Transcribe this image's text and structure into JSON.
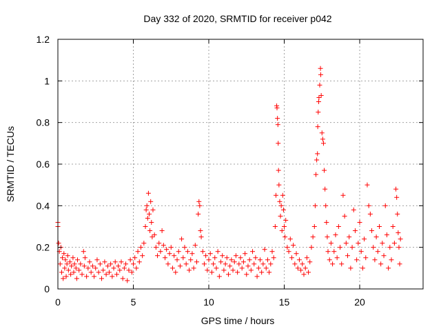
{
  "chart_data": {
    "type": "scatter",
    "title": "Day 332 of 2020, SRMTID for receiver p042",
    "xlabel": "GPS time / hours",
    "ylabel": "SRMTID / TECUs",
    "xlim": [
      0,
      24.2
    ],
    "ylim": [
      0,
      1.2
    ],
    "xticks": [
      0,
      5,
      10,
      15,
      20
    ],
    "xtick_labels": [
      "0",
      "5",
      "10",
      "15",
      "20"
    ],
    "yticks": [
      0,
      0.2,
      0.4,
      0.6,
      0.8,
      1,
      1.2
    ],
    "ytick_labels": [
      "0",
      "0.2",
      "0.4",
      "0.6",
      "0.8",
      "1",
      "1.2"
    ],
    "grid": true,
    "marker": "+",
    "series": [
      {
        "name": "SRMTID",
        "color": "#ff0000",
        "points": [
          [
            0.0,
            0.32
          ],
          [
            0.0,
            0.3
          ],
          [
            0.05,
            0.22
          ],
          [
            0.1,
            0.18
          ],
          [
            0.15,
            0.12
          ],
          [
            0.2,
            0.2
          ],
          [
            0.25,
            0.08
          ],
          [
            0.3,
            0.15
          ],
          [
            0.35,
            0.05
          ],
          [
            0.4,
            0.17
          ],
          [
            0.45,
            0.1
          ],
          [
            0.5,
            0.14
          ],
          [
            0.55,
            0.06
          ],
          [
            0.6,
            0.12
          ],
          [
            0.65,
            0.16
          ],
          [
            0.7,
            0.09
          ],
          [
            0.8,
            0.13
          ],
          [
            0.85,
            0.07
          ],
          [
            0.9,
            0.11
          ],
          [
            1.0,
            0.15
          ],
          [
            1.05,
            0.08
          ],
          [
            1.1,
            0.12
          ],
          [
            1.2,
            0.1
          ],
          [
            1.25,
            0.05
          ],
          [
            1.3,
            0.14
          ],
          [
            1.4,
            0.09
          ],
          [
            1.5,
            0.12
          ],
          [
            1.6,
            0.07
          ],
          [
            1.7,
            0.18
          ],
          [
            1.75,
            0.11
          ],
          [
            1.8,
            0.15
          ],
          [
            1.9,
            0.06
          ],
          [
            2.0,
            0.1
          ],
          [
            2.1,
            0.13
          ],
          [
            2.2,
            0.08
          ],
          [
            2.3,
            0.11
          ],
          [
            2.4,
            0.06
          ],
          [
            2.5,
            0.1
          ],
          [
            2.6,
            0.14
          ],
          [
            2.7,
            0.08
          ],
          [
            2.8,
            0.12
          ],
          [
            2.9,
            0.05
          ],
          [
            3.0,
            0.09
          ],
          [
            3.1,
            0.13
          ],
          [
            3.2,
            0.07
          ],
          [
            3.3,
            0.11
          ],
          [
            3.4,
            0.08
          ],
          [
            3.5,
            0.12
          ],
          [
            3.6,
            0.06
          ],
          [
            3.7,
            0.1
          ],
          [
            3.8,
            0.13
          ],
          [
            3.9,
            0.07
          ],
          [
            4.0,
            0.11
          ],
          [
            4.1,
            0.09
          ],
          [
            4.2,
            0.13
          ],
          [
            4.3,
            0.05
          ],
          [
            4.4,
            0.1
          ],
          [
            4.5,
            0.12
          ],
          [
            4.6,
            0.04
          ],
          [
            4.7,
            0.09
          ],
          [
            4.8,
            0.14
          ],
          [
            4.9,
            0.08
          ],
          [
            5.0,
            0.12
          ],
          [
            5.1,
            0.15
          ],
          [
            5.2,
            0.1
          ],
          [
            5.3,
            0.18
          ],
          [
            5.4,
            0.13
          ],
          [
            5.5,
            0.2
          ],
          [
            5.6,
            0.16
          ],
          [
            5.7,
            0.22
          ],
          [
            5.8,
            0.3
          ],
          [
            5.85,
            0.38
          ],
          [
            5.9,
            0.4
          ],
          [
            5.95,
            0.34
          ],
          [
            6.0,
            0.46
          ],
          [
            6.05,
            0.36
          ],
          [
            6.1,
            0.28
          ],
          [
            6.15,
            0.42
          ],
          [
            6.2,
            0.32
          ],
          [
            6.25,
            0.25
          ],
          [
            6.3,
            0.38
          ],
          [
            6.4,
            0.26
          ],
          [
            6.5,
            0.2
          ],
          [
            6.6,
            0.16
          ],
          [
            6.7,
            0.22
          ],
          [
            6.8,
            0.18
          ],
          [
            6.9,
            0.28
          ],
          [
            7.0,
            0.21
          ],
          [
            7.1,
            0.15
          ],
          [
            7.2,
            0.19
          ],
          [
            7.3,
            0.12
          ],
          [
            7.4,
            0.17
          ],
          [
            7.5,
            0.2
          ],
          [
            7.6,
            0.1
          ],
          [
            7.7,
            0.16
          ],
          [
            7.8,
            0.08
          ],
          [
            7.9,
            0.14
          ],
          [
            8.0,
            0.18
          ],
          [
            8.1,
            0.11
          ],
          [
            8.2,
            0.24
          ],
          [
            8.3,
            0.15
          ],
          [
            8.4,
            0.2
          ],
          [
            8.5,
            0.12
          ],
          [
            8.6,
            0.18
          ],
          [
            8.7,
            0.09
          ],
          [
            8.8,
            0.14
          ],
          [
            8.9,
            0.17
          ],
          [
            9.0,
            0.1
          ],
          [
            9.1,
            0.21
          ],
          [
            9.2,
            0.13
          ],
          [
            9.3,
            0.36
          ],
          [
            9.35,
            0.42
          ],
          [
            9.4,
            0.4
          ],
          [
            9.45,
            0.28
          ],
          [
            9.5,
            0.25
          ],
          [
            9.6,
            0.18
          ],
          [
            9.7,
            0.12
          ],
          [
            9.8,
            0.16
          ],
          [
            9.9,
            0.09
          ],
          [
            10.0,
            0.14
          ],
          [
            10.1,
            0.17
          ],
          [
            10.2,
            0.08
          ],
          [
            10.3,
            0.12
          ],
          [
            10.4,
            0.15
          ],
          [
            10.5,
            0.1
          ],
          [
            10.6,
            0.18
          ],
          [
            10.7,
            0.06
          ],
          [
            10.8,
            0.13
          ],
          [
            10.9,
            0.16
          ],
          [
            11.0,
            0.09
          ],
          [
            11.1,
            0.12
          ],
          [
            11.2,
            0.15
          ],
          [
            11.3,
            0.07
          ],
          [
            11.4,
            0.11
          ],
          [
            11.5,
            0.14
          ],
          [
            11.6,
            0.09
          ],
          [
            11.7,
            0.13
          ],
          [
            11.8,
            0.16
          ],
          [
            11.9,
            0.08
          ],
          [
            12.0,
            0.12
          ],
          [
            12.1,
            0.15
          ],
          [
            12.2,
            0.1
          ],
          [
            12.3,
            0.13
          ],
          [
            12.4,
            0.17
          ],
          [
            12.5,
            0.07
          ],
          [
            12.6,
            0.11
          ],
          [
            12.7,
            0.14
          ],
          [
            12.8,
            0.09
          ],
          [
            12.9,
            0.18
          ],
          [
            13.0,
            0.12
          ],
          [
            13.1,
            0.15
          ],
          [
            13.2,
            0.06
          ],
          [
            13.3,
            0.1
          ],
          [
            13.4,
            0.14
          ],
          [
            13.5,
            0.08
          ],
          [
            13.6,
            0.12
          ],
          [
            13.7,
            0.19
          ],
          [
            13.8,
            0.1
          ],
          [
            13.9,
            0.14
          ],
          [
            14.0,
            0.08
          ],
          [
            14.1,
            0.12
          ],
          [
            14.2,
            0.18
          ],
          [
            14.3,
            0.15
          ],
          [
            14.4,
            0.3
          ],
          [
            14.45,
            0.45
          ],
          [
            14.5,
            0.88
          ],
          [
            14.52,
            0.87
          ],
          [
            14.55,
            0.82
          ],
          [
            14.58,
            0.79
          ],
          [
            14.6,
            0.7
          ],
          [
            14.62,
            0.57
          ],
          [
            14.65,
            0.5
          ],
          [
            14.7,
            0.42
          ],
          [
            14.75,
            0.35
          ],
          [
            14.8,
            0.4
          ],
          [
            14.85,
            0.28
          ],
          [
            14.9,
            0.45
          ],
          [
            14.95,
            0.38
          ],
          [
            15.0,
            0.3
          ],
          [
            15.05,
            0.25
          ],
          [
            15.1,
            0.33
          ],
          [
            15.2,
            0.2
          ],
          [
            15.3,
            0.18
          ],
          [
            15.4,
            0.24
          ],
          [
            15.5,
            0.15
          ],
          [
            15.6,
            0.21
          ],
          [
            15.7,
            0.12
          ],
          [
            15.8,
            0.17
          ],
          [
            15.9,
            0.1
          ],
          [
            16.0,
            0.14
          ],
          [
            16.1,
            0.09
          ],
          [
            16.2,
            0.12
          ],
          [
            16.3,
            0.07
          ],
          [
            16.4,
            0.1
          ],
          [
            16.5,
            0.15
          ],
          [
            16.6,
            0.08
          ],
          [
            16.7,
            0.13
          ],
          [
            16.8,
            0.2
          ],
          [
            16.9,
            0.25
          ],
          [
            17.0,
            0.3
          ],
          [
            17.05,
            0.4
          ],
          [
            17.1,
            0.55
          ],
          [
            17.15,
            0.62
          ],
          [
            17.2,
            0.65
          ],
          [
            17.22,
            0.78
          ],
          [
            17.25,
            0.85
          ],
          [
            17.28,
            0.9
          ],
          [
            17.3,
            0.92
          ],
          [
            17.35,
            0.98
          ],
          [
            17.4,
            1.06
          ],
          [
            17.42,
            1.03
          ],
          [
            17.45,
            0.93
          ],
          [
            17.5,
            0.75
          ],
          [
            17.55,
            0.72
          ],
          [
            17.6,
            0.7
          ],
          [
            17.65,
            0.57
          ],
          [
            17.7,
            0.48
          ],
          [
            17.75,
            0.4
          ],
          [
            17.8,
            0.32
          ],
          [
            17.85,
            0.25
          ],
          [
            17.9,
            0.18
          ],
          [
            18.0,
            0.14
          ],
          [
            18.1,
            0.22
          ],
          [
            18.2,
            0.12
          ],
          [
            18.3,
            0.18
          ],
          [
            18.4,
            0.26
          ],
          [
            18.5,
            0.15
          ],
          [
            18.6,
            0.3
          ],
          [
            18.7,
            0.2
          ],
          [
            18.8,
            0.12
          ],
          [
            18.9,
            0.45
          ],
          [
            19.0,
            0.35
          ],
          [
            19.1,
            0.22
          ],
          [
            19.2,
            0.16
          ],
          [
            19.3,
            0.25
          ],
          [
            19.4,
            0.1
          ],
          [
            19.5,
            0.2
          ],
          [
            19.6,
            0.38
          ],
          [
            19.7,
            0.28
          ],
          [
            19.8,
            0.14
          ],
          [
            19.9,
            0.22
          ],
          [
            20.0,
            0.32
          ],
          [
            20.1,
            0.18
          ],
          [
            20.2,
            0.1
          ],
          [
            20.3,
            0.24
          ],
          [
            20.4,
            0.15
          ],
          [
            20.5,
            0.5
          ],
          [
            20.6,
            0.4
          ],
          [
            20.7,
            0.36
          ],
          [
            20.8,
            0.28
          ],
          [
            20.9,
            0.2
          ],
          [
            21.0,
            0.14
          ],
          [
            21.1,
            0.25
          ],
          [
            21.2,
            0.18
          ],
          [
            21.3,
            0.3
          ],
          [
            21.4,
            0.12
          ],
          [
            21.5,
            0.22
          ],
          [
            21.6,
            0.16
          ],
          [
            21.7,
            0.4
          ],
          [
            21.8,
            0.26
          ],
          [
            21.9,
            0.1
          ],
          [
            22.0,
            0.2
          ],
          [
            22.1,
            0.14
          ],
          [
            22.2,
            0.3
          ],
          [
            22.3,
            0.22
          ],
          [
            22.4,
            0.48
          ],
          [
            22.45,
            0.44
          ],
          [
            22.5,
            0.36
          ],
          [
            22.55,
            0.27
          ],
          [
            22.6,
            0.2
          ],
          [
            22.65,
            0.12
          ],
          [
            22.7,
            0.24
          ]
        ]
      }
    ]
  }
}
